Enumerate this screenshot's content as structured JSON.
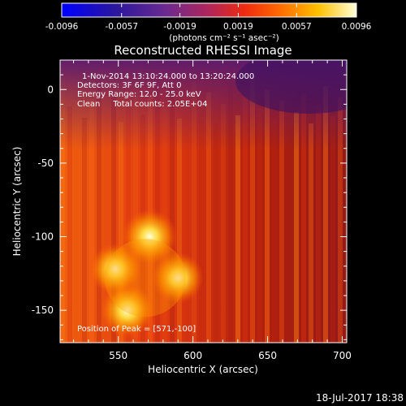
{
  "colorbar": {
    "ticks": [
      "-0.0096",
      "-0.0057",
      "-0.0019",
      "0.0019",
      "0.0057",
      "0.0096"
    ],
    "tick_values": [
      -0.0096,
      -0.0057,
      -0.0019,
      0.0019,
      0.0057,
      0.0096
    ],
    "range": [
      -0.0096,
      0.0096
    ],
    "unit_label": "(photons cm⁻² s⁻¹ asec⁻²)",
    "colormap": [
      "#0000ff",
      "#3a1a9c",
      "#7a2a8a",
      "#c0244a",
      "#ff3a00",
      "#ff8a00",
      "#ffd000",
      "#ffffd0"
    ]
  },
  "chart_data": {
    "type": "heatmap",
    "title": "Reconstructed RHESSI Image",
    "xlabel": "Heliocentric X (arcsec)",
    "ylabel": "Heliocentric Y (arcsec)",
    "xlim": [
      511,
      703
    ],
    "ylim": [
      -172,
      20
    ],
    "xticks": [
      550,
      600,
      650,
      700
    ],
    "yticks": [
      0,
      -50,
      -100,
      -150
    ],
    "annotations": [
      "1-Nov-2014 13:10:24.000 to 13:20:24.000",
      "Detectors: 3F 6F 9F, Att 0",
      "Energy Range: 12.0 - 25.0 keV",
      "Clean     Total counts: 2.05E+04"
    ],
    "peak_label": "Position of Peak = [571,-100]",
    "peak": [
      571,
      -100
    ],
    "sources": [
      {
        "x": 571,
        "y": -100,
        "value": 0.0096
      },
      {
        "x": 556,
        "y": -150,
        "value": 0.0088
      },
      {
        "x": 548,
        "y": -122,
        "value": 0.0078
      },
      {
        "x": 590,
        "y": -128,
        "value": 0.0075
      }
    ]
  },
  "footer": {
    "timestamp": "18-Jul-2017 18:38"
  }
}
